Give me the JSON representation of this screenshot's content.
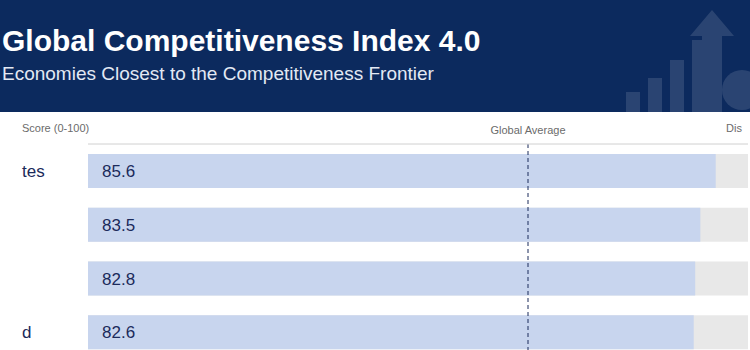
{
  "chart_data": {
    "type": "bar",
    "orientation": "horizontal",
    "title": "Global Competitiveness Index 4.0",
    "subtitle": "Economies Closest to the Competitiveness Frontier",
    "x_label": "Score (0-100)",
    "right_header": "Dis",
    "categories": [
      "tes",
      null,
      null,
      "d"
    ],
    "values": [
      85.6,
      83.5,
      82.8,
      82.6
    ],
    "color": "#c8d5ee",
    "xlim": [
      0,
      90
    ],
    "tick_labels": false,
    "data_labels": true,
    "reference_line": {
      "label": "Global Average",
      "value": 60
    }
  }
}
